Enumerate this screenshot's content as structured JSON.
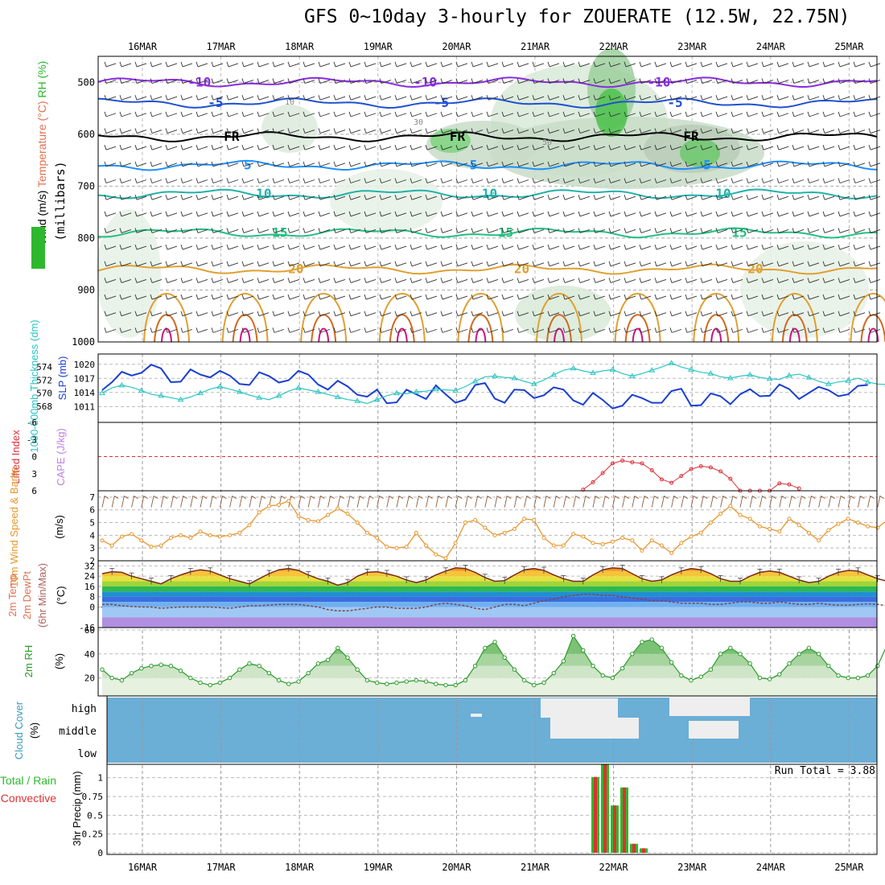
{
  "title": "GFS 0~10day 3-hourly for ZOUERATE (12.5W, 22.75N)",
  "run_total": "Run Total = 3.88",
  "dates": [
    "16MAR",
    "17MAR",
    "18MAR",
    "19MAR",
    "20MAR",
    "21MAR",
    "22MAR",
    "23MAR",
    "24MAR",
    "25MAR"
  ],
  "colors": {
    "slp": "#1a3fd0",
    "thickness": "#2ec4c4",
    "lifted": "#d9303a",
    "cape": "#c080e0",
    "wind": "#e8962c",
    "temp_line": "#7a2a1a",
    "dewpt": "#7a4a4a",
    "rh": "#2a9a2a",
    "cloud_bg": "#6baed6",
    "cloud": "#eeeeee",
    "precip_total": "#2eb82e",
    "precip_conv": "#e03030"
  },
  "chart_data": [
    {
      "type": "contour",
      "panel": "upper_air",
      "ylabel": "(millibars)",
      "ylabel_parts": [
        "Wind (m/s)",
        "Temperature (°C)",
        "RH (%)"
      ],
      "y_ticks": [
        500,
        600,
        700,
        800,
        900,
        1000
      ],
      "ylim": [
        450,
        1000
      ],
      "temperature_contours": [
        {
          "value": -10,
          "label": "-10",
          "level_mb": 500,
          "color": "#8a2be2"
        },
        {
          "value": -5,
          "label": "-5",
          "level_mb": 540,
          "color": "#2050d0"
        },
        {
          "value": 0,
          "label": "FR",
          "level_mb": 605,
          "color": "#000000"
        },
        {
          "value": 5,
          "label": "5",
          "level_mb": 660,
          "color": "#1e90ff"
        },
        {
          "value": 10,
          "label": "10",
          "level_mb": 715,
          "color": "#20b2aa"
        },
        {
          "value": 15,
          "label": "15",
          "level_mb": 790,
          "color": "#20c080"
        },
        {
          "value": 20,
          "label": "20",
          "level_mb": 860,
          "color": "#e0a030"
        }
      ],
      "rh_labels": [
        "10",
        "30",
        "50"
      ]
    },
    {
      "type": "line",
      "panel": "slp_thickness",
      "ylabels": [
        "SLP (mb)",
        "1000-500mb Thickness (dm)"
      ],
      "y_left_ticks": [
        568,
        570,
        572,
        574
      ],
      "y_right_ticks": [
        1011,
        1014,
        1017,
        1020
      ],
      "series": [
        {
          "name": "SLP",
          "axis": "right",
          "values": [
            1014.5,
            1016.2,
            1018.4,
            1017.6,
            1018.2,
            1019.9,
            1019.1,
            1016.2,
            1016.3,
            1018.9,
            1017.8,
            1017.2,
            1018.6,
            1017.6,
            1015.8,
            1015.6,
            1018.3,
            1017.5,
            1016.1,
            1016.6,
            1018.6,
            1017.8,
            1015.7,
            1014.6,
            1016.5,
            1015.3,
            1013.5,
            1013.1,
            1014.6,
            1011.7,
            1011.9,
            1014.6,
            1013.6,
            1012.6,
            1015.5,
            1013.6,
            1011.8,
            1012.5,
            1015.6,
            1016.0,
            1012.7,
            1011.8,
            1014.6,
            1014.5,
            1012.8,
            1013.4,
            1015.1,
            1014.6,
            1012.3,
            1011.4,
            1013.9,
            1012.4,
            1010.6,
            1011.2,
            1013.5,
            1012.8,
            1011.8,
            1011.8,
            1014.3,
            1014.8,
            1011.2,
            1011.3,
            1013.8,
            1013.2,
            1011.5,
            1013.6,
            1014.7,
            1013.2,
            1013.3,
            1015.7,
            1014.7,
            1012.6,
            1013.9,
            1015.2,
            1014.5,
            1013.2,
            1013.6,
            1015.4,
            1015.6
          ]
        },
        {
          "name": "Thickness",
          "axis": "left",
          "values": [
            570.0,
            570.8,
            571.2,
            570.9,
            570.4,
            569.8,
            569.6,
            569.3,
            569.0,
            569.4,
            570.0,
            570.6,
            571.0,
            570.6,
            570.2,
            569.7,
            569.3,
            569.0,
            569.6,
            570.3,
            570.8,
            570.5,
            570.2,
            569.8,
            569.4,
            569.0,
            568.8,
            568.4,
            569.0,
            569.6,
            570.0,
            569.9,
            570.2,
            570.3,
            570.6,
            570.5,
            570.4,
            571.0,
            571.8,
            572.5,
            572.6,
            572.4,
            572.3,
            571.8,
            571.4,
            572.0,
            572.8,
            573.5,
            573.8,
            573.4,
            573.1,
            573.4,
            573.6,
            573.0,
            572.6,
            573.0,
            573.5,
            574.0,
            574.6,
            574.0,
            573.6,
            573.2,
            573.0,
            572.5,
            572.3,
            572.6,
            572.8,
            572.4,
            572.2,
            572.1,
            572.7,
            572.9,
            572.4,
            571.8,
            571.4,
            571.7,
            571.9,
            572.3,
            571.7,
            571.4,
            571.3,
            570.9,
            571.0,
            571.6,
            571.9,
            571.1,
            570.6,
            570.4
          ]
        }
      ]
    },
    {
      "type": "line",
      "panel": "lifted_cape",
      "ylabels": [
        "Lifted Index",
        "CAPE (J/kg)"
      ],
      "y_ticks": [
        -6,
        -3,
        0,
        3,
        6
      ],
      "ylim": [
        -6,
        6
      ],
      "reference_line": 0,
      "series": [
        {
          "name": "Lifted Index",
          "x_start": 49,
          "values": [
            5.8,
            4.5,
            2.9,
            1.2,
            0.7,
            1.0,
            1.2,
            2.4,
            4.0,
            4.6,
            3.4,
            2.2,
            1.7,
            1.9,
            2.6,
            3.9,
            6.0,
            6.0,
            6.0,
            6.0,
            4.7,
            4.9,
            5.6
          ]
        }
      ]
    },
    {
      "type": "line",
      "panel": "wind10m",
      "ylabels": [
        "10m Wind Speed & Barbs",
        "(m/s)"
      ],
      "y_ticks": [
        2,
        3,
        4,
        5,
        6,
        7
      ],
      "ylim": [
        2,
        7.5
      ],
      "series": [
        {
          "name": "10m Wind Speed",
          "values": [
            3.6,
            3.2,
            3.9,
            4.1,
            3.6,
            3.1,
            3.2,
            3.8,
            4.0,
            3.8,
            4.3,
            4.0,
            3.9,
            4.0,
            4.2,
            4.8,
            5.8,
            6.3,
            6.4,
            6.7,
            5.5,
            5.2,
            5.1,
            5.6,
            6.1,
            5.7,
            5.0,
            4.2,
            3.8,
            3.1,
            3.0,
            3.1,
            4.2,
            3.2,
            2.5,
            2.2,
            3.4,
            5.0,
            5.2,
            4.6,
            4.0,
            4.2,
            4.5,
            5.3,
            5.2,
            3.8,
            3.2,
            3.2,
            4.1,
            3.9,
            3.4,
            3.3,
            3.5,
            3.8,
            3.6,
            2.8,
            3.6,
            3.2,
            2.6,
            3.4,
            3.9,
            4.2,
            5.0,
            5.7,
            6.3,
            5.6,
            5.3,
            4.7,
            4.5,
            4.3,
            5.3,
            4.8,
            4.2,
            3.6,
            4.4,
            4.9,
            5.3,
            5.0,
            4.7,
            4.6,
            5.2,
            5.1,
            4.9,
            4.5,
            5.8,
            5.6,
            4.3,
            4.7
          ]
        }
      ]
    },
    {
      "type": "area",
      "panel": "temperature",
      "ylabels": [
        "2m Temp",
        "2m DewPt",
        "(6hr Min/Max)",
        "(°C)"
      ],
      "y_ticks": [
        -16,
        0,
        8,
        16,
        24,
        32
      ],
      "ylim": [
        -16,
        36
      ],
      "series": [
        {
          "name": "2m Temp",
          "values": [
            26.0,
            27.5,
            27.0,
            24.0,
            22.0,
            20.0,
            18.0,
            22.0,
            25.0,
            27.5,
            29.0,
            28.0,
            25.0,
            22.0,
            20.0,
            18.0,
            22.0,
            26.0,
            29.0,
            30.0,
            28.5,
            25.0,
            22.0,
            20.0,
            17.0,
            19.0,
            24.0,
            27.0,
            27.5,
            26.0,
            24.0,
            21.0,
            19.0,
            21.0,
            25.0,
            28.0,
            30.5,
            30.0,
            27.0,
            23.0,
            20.0,
            20.5,
            25.0,
            29.0,
            30.0,
            28.5,
            25.0,
            22.0,
            20.0,
            20.0,
            25.0,
            29.0,
            30.5,
            30.0,
            26.0,
            22.0,
            20.0,
            21.0,
            25.0,
            28.0,
            30.0,
            29.0,
            26.0,
            22.0,
            20.0,
            20.0,
            24.0,
            27.0,
            28.0,
            27.0,
            24.0,
            21.0,
            19.0,
            20.0,
            24.0,
            27.0,
            28.5,
            28.0,
            25.0,
            22.0,
            20.0,
            18.0
          ]
        },
        {
          "name": "2m DewPt",
          "values": [
            2.0,
            2.0,
            1.0,
            0.5,
            0.0,
            0.0,
            -1.0,
            -0.5,
            0.0,
            0.0,
            0.0,
            0.0,
            -0.5,
            -1.0,
            0.0,
            1.0,
            1.0,
            1.5,
            2.0,
            2.0,
            2.0,
            1.0,
            0.0,
            -2.0,
            -3.0,
            -3.0,
            -2.0,
            -1.0,
            0.0,
            0.0,
            -1.0,
            -1.0,
            -1.0,
            0.0,
            2.0,
            3.0,
            2.0,
            1.0,
            -1.0,
            -2.0,
            0.0,
            2.0,
            2.0,
            1.0,
            3.0,
            5.0,
            6.0,
            8.0,
            9.0,
            10.0,
            10.0,
            9.0,
            9.0,
            8.0,
            7.0,
            6.0,
            5.0,
            5.0,
            4.0,
            3.0,
            3.0,
            3.0,
            2.0,
            2.0,
            3.0,
            4.0,
            4.0,
            3.0,
            3.0,
            4.0,
            3.0,
            2.0,
            2.0,
            3.0,
            2.0,
            1.5,
            1.5,
            2.0,
            2.5,
            2.0,
            1.0,
            0.0
          ]
        }
      ]
    },
    {
      "type": "area",
      "panel": "rh2m",
      "ylabels": [
        "2m RH",
        "(%)"
      ],
      "y_ticks": [
        20,
        40,
        60
      ],
      "ylim": [
        5,
        62
      ],
      "series": [
        {
          "name": "2m RH",
          "values": [
            27,
            20,
            18,
            24,
            28,
            30,
            31,
            30,
            26,
            20,
            16,
            14,
            16,
            20,
            27,
            32,
            30,
            24,
            18,
            15,
            17,
            24,
            32,
            35,
            45,
            37,
            27,
            18,
            16,
            15,
            16,
            17,
            18,
            17,
            15,
            14,
            14,
            18,
            30,
            45,
            50,
            37,
            27,
            18,
            14,
            16,
            24,
            34,
            55,
            43,
            30,
            22,
            20,
            28,
            40,
            50,
            52,
            45,
            33,
            22,
            18,
            21,
            27,
            40,
            45,
            40,
            32,
            20,
            19,
            23,
            32,
            40,
            45,
            40,
            30,
            22,
            20,
            20,
            22,
            30,
            48
          ]
        }
      ]
    },
    {
      "type": "heatmap",
      "panel": "cloud_cover",
      "ylabels": [
        "Cloud Cover",
        "(%)"
      ],
      "y_ticks": [
        "high",
        "middle",
        "low"
      ]
    },
    {
      "type": "bar",
      "panel": "precip",
      "ylabels": [
        "3hr Precip (mm)",
        "Total / Rain",
        "Convective"
      ],
      "y_ticks": [
        0,
        0.25,
        0.5,
        0.75,
        1
      ],
      "ylim": [
        0,
        1.2
      ],
      "bars": [
        {
          "total": 1.01,
          "convective": 1.01
        },
        {
          "total": 1.18,
          "convective": 1.18
        },
        {
          "total": 0.63,
          "convective": 0.63
        },
        {
          "total": 0.87,
          "convective": 0.87
        },
        {
          "total": 0.12,
          "convective": 0.12
        },
        {
          "total": 0.06,
          "convective": 0.06
        }
      ]
    }
  ]
}
